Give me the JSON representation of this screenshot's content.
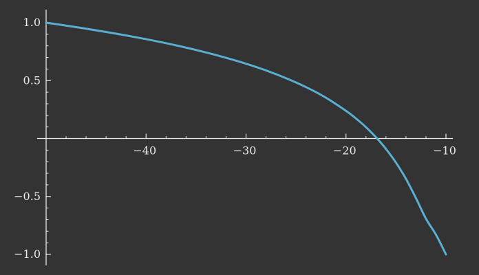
{
  "chart_data": {
    "type": "line",
    "title": "",
    "xlabel": "",
    "ylabel": "",
    "xlim": [
      -50,
      -10
    ],
    "ylim": [
      -1,
      1
    ],
    "x_ticks": [
      -40,
      -30,
      -20,
      -10
    ],
    "x_tick_labels": [
      "−40",
      "−30",
      "−20",
      "−10"
    ],
    "y_ticks": [
      1.0,
      0.5,
      -0.5,
      -1.0
    ],
    "y_tick_labels": [
      "1.0",
      "0.5",
      "−0.5",
      "−1.0"
    ],
    "grid": false,
    "colors": {
      "background": "#333333",
      "axis": "#e8e8e8",
      "curve": "#5aaed0"
    },
    "series": [
      {
        "x": [
          -50,
          -48,
          -46,
          -44,
          -42,
          -40,
          -38,
          -36,
          -34,
          -32,
          -30,
          -28,
          -26,
          -24,
          -22,
          -20,
          -19,
          -18,
          -17,
          -16.5,
          -16,
          -15,
          -14,
          -13,
          -12,
          -11,
          -10
        ],
        "y": [
          1.0,
          0.975,
          0.948,
          0.92,
          0.89,
          0.858,
          0.823,
          0.785,
          0.743,
          0.697,
          0.646,
          0.588,
          0.521,
          0.444,
          0.352,
          0.239,
          0.173,
          0.098,
          0.011,
          -0.038,
          -0.09,
          -0.208,
          -0.348,
          -0.515,
          -0.692,
          -0.83,
          -1.0
        ]
      }
    ]
  }
}
